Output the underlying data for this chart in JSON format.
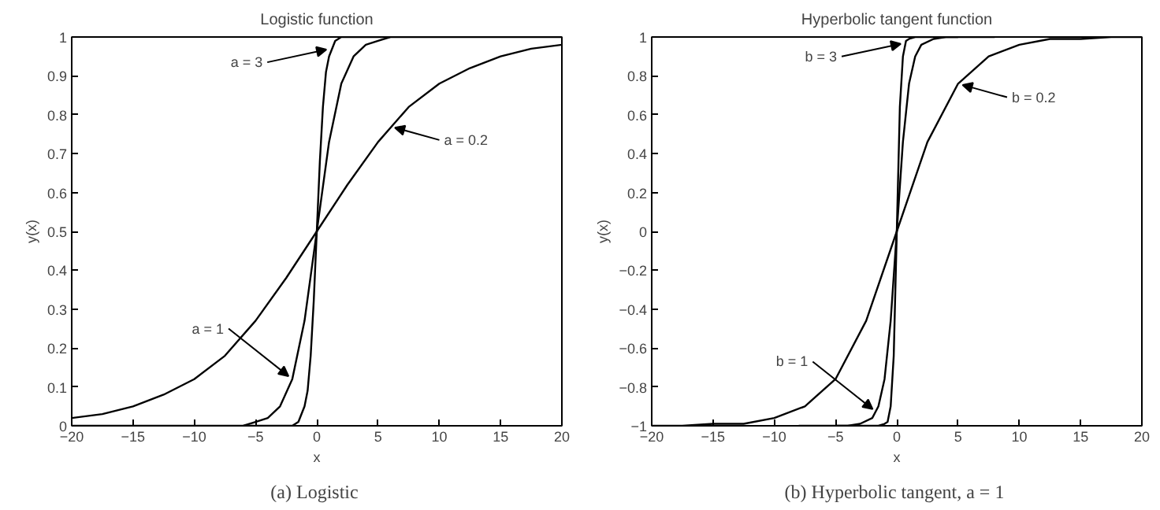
{
  "chart_data": [
    {
      "type": "line",
      "title": "Logistic function",
      "xlabel": "x",
      "ylabel": "y(x)",
      "xlim": [
        -20,
        20
      ],
      "ylim": [
        0,
        1
      ],
      "xticks": [
        -20,
        -15,
        -10,
        -5,
        0,
        5,
        10,
        15,
        20
      ],
      "yticks": [
        0,
        0.1,
        0.2,
        0.3,
        0.4,
        0.5,
        0.6,
        0.7,
        0.8,
        0.9,
        1
      ],
      "grid": false,
      "marker": "none",
      "line_style": "solid",
      "series": [
        {
          "color": "#000000",
          "x": [
            -20,
            -17.5,
            -15,
            -12.5,
            -10,
            -7.5,
            -5,
            -2.5,
            0,
            2.5,
            5,
            7.5,
            10,
            12.5,
            15,
            17.5,
            20
          ],
          "values": [
            0.02,
            0.03,
            0.05,
            0.08,
            0.12,
            0.18,
            0.27,
            0.38,
            0.5,
            0.62,
            0.73,
            0.82,
            0.88,
            0.92,
            0.95,
            0.97,
            0.98
          ]
        },
        {
          "color": "#000000",
          "x": [
            -20,
            -8,
            -6,
            -5,
            -4,
            -3,
            -2,
            -1,
            0,
            1,
            2,
            3,
            4,
            5,
            6,
            8,
            20
          ],
          "values": [
            0,
            0,
            0,
            0.01,
            0.02,
            0.05,
            0.12,
            0.27,
            0.5,
            0.73,
            0.88,
            0.95,
            0.98,
            0.99,
            1,
            1,
            1
          ]
        },
        {
          "color": "#000000",
          "x": [
            -6,
            -3,
            -2,
            -1.5,
            -1,
            -0.75,
            -0.5,
            -0.25,
            0,
            0.25,
            0.5,
            0.75,
            1,
            1.5,
            2,
            3,
            6
          ],
          "values": [
            0,
            0,
            0,
            0.01,
            0.05,
            0.09,
            0.18,
            0.32,
            0.5,
            0.68,
            0.82,
            0.91,
            0.95,
            0.99,
            1,
            1,
            1
          ]
        }
      ],
      "annotations": [
        {
          "text": "a = 3",
          "x": 1.16,
          "y": 0.97
        },
        {
          "text": "a = 0.2",
          "x": 6,
          "y": 0.77
        },
        {
          "text": "a = 1",
          "x": -2,
          "y": 0.12
        },
        "(a)  Logistic"
      ]
    },
    {
      "type": "line",
      "title": "Hyperbolic tangent function",
      "xlabel": "x",
      "ylabel": "y(x)",
      "xlim": [
        -20,
        20
      ],
      "ylim": [
        -1,
        1
      ],
      "xticks": [
        -20,
        -15,
        -10,
        -5,
        0,
        5,
        10,
        15,
        20
      ],
      "yticks": [
        -1,
        -0.8,
        -0.6,
        -0.4,
        -0.2,
        0,
        0.2,
        0.4,
        0.6,
        0.8,
        1
      ],
      "grid": false,
      "marker": "none",
      "line_style": "solid",
      "series": [
        {
          "color": "#000000",
          "x": [
            -20,
            -17.5,
            -15,
            -12.5,
            -10,
            -7.5,
            -5,
            -2.5,
            0,
            2.5,
            5,
            7.5,
            10,
            12.5,
            15,
            17.5,
            20
          ],
          "values": [
            -1,
            -1,
            -0.99,
            -0.99,
            -0.96,
            -0.9,
            -0.76,
            -0.46,
            0,
            0.46,
            0.76,
            0.9,
            0.96,
            0.99,
            0.99,
            1,
            1
          ]
        },
        {
          "color": "#000000",
          "x": [
            -8,
            -4,
            -3,
            -2,
            -1.5,
            -1,
            -0.5,
            0,
            0.5,
            1,
            1.5,
            2,
            3,
            4,
            8
          ],
          "values": [
            -1,
            -1,
            -0.99,
            -0.96,
            -0.9,
            -0.76,
            -0.46,
            0,
            0.46,
            0.76,
            0.9,
            0.96,
            0.99,
            1,
            1
          ]
        },
        {
          "color": "#000000",
          "x": [
            -5,
            -1.5,
            -1,
            -0.75,
            -0.5,
            -0.25,
            0,
            0.25,
            0.5,
            0.75,
            1,
            1.5,
            5
          ],
          "values": [
            -1,
            -1,
            -0.99,
            -0.98,
            -0.9,
            -0.64,
            0,
            0.64,
            0.9,
            0.98,
            0.99,
            1,
            1
          ]
        }
      ],
      "annotations": [
        {
          "text": "b = 3",
          "x": 0.7,
          "y": 0.97
        },
        {
          "text": "b = 0.2",
          "x": 5,
          "y": 0.76
        },
        {
          "text": "b = 1",
          "x": -1.66,
          "y": -0.93
        },
        "(b)  Hyperbolic tangent, a = 1"
      ]
    }
  ]
}
